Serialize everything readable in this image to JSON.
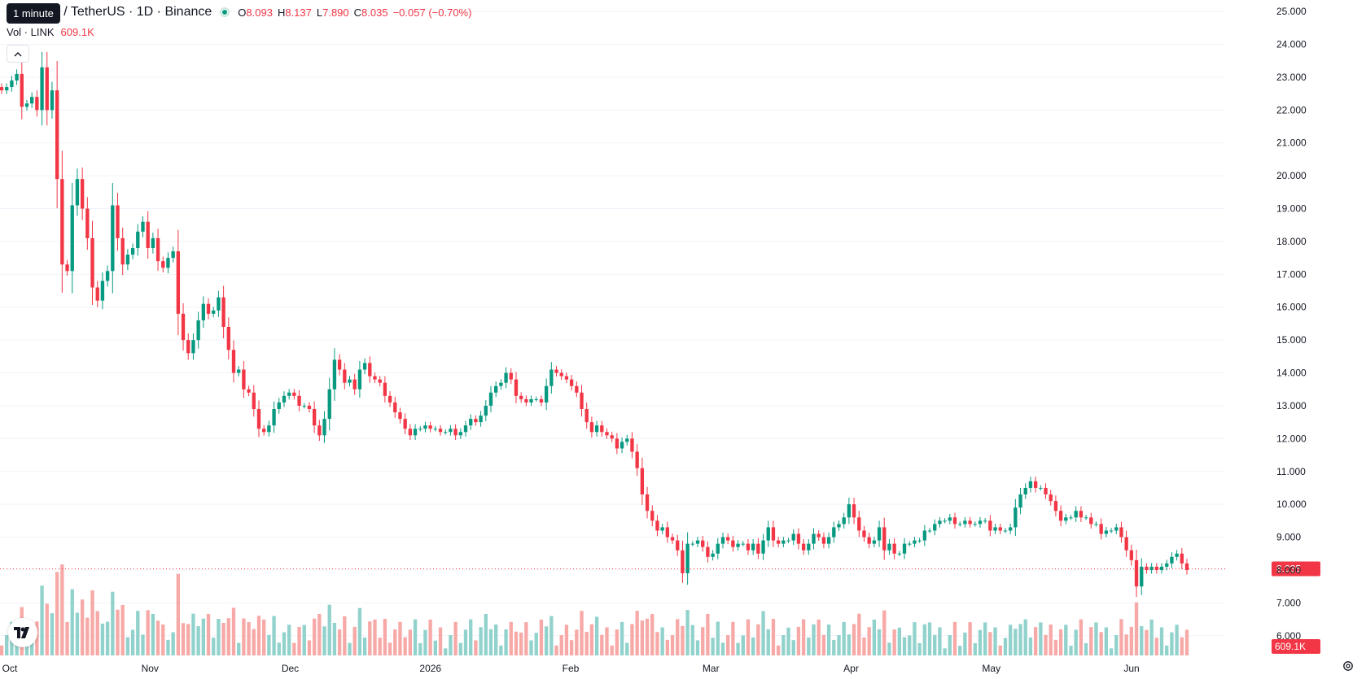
{
  "header": {
    "tooltip": "1 minute",
    "symbol_title": "Chainlink / TetherUS · 1D · Binance",
    "ohlc": {
      "o_label": "O",
      "o": "8.093",
      "h_label": "H",
      "h": "8.137",
      "l_label": "L",
      "l": "7.890",
      "c_label": "C",
      "c": "8.035",
      "change": "−0.057 (−0.70%)"
    },
    "volume_label": "Vol · LINK",
    "volume_value": "609.1K"
  },
  "colors": {
    "up": "#089981",
    "down": "#f23645",
    "up_volume": "#92d2cc",
    "down_volume": "#f7a9a7"
  },
  "icons": {
    "collapse": "chevron-up-icon",
    "logo": "tradingview-logo-icon",
    "settings": "gear-icon"
  },
  "chart_data": {
    "type": "candlestick",
    "title": "Chainlink / TetherUS · 1D · Binance",
    "y_ticks": [
      "25.000",
      "24.000",
      "23.000",
      "22.000",
      "21.000",
      "20.000",
      "19.000",
      "18.000",
      "17.000",
      "16.000",
      "15.000",
      "14.000",
      "13.000",
      "12.000",
      "11.000",
      "10.000",
      "9.000",
      "8.000",
      "7.000",
      "6.000"
    ],
    "ylim": [
      5.4,
      25.35
    ],
    "x_ticks": [
      "Oct",
      "Nov",
      "Dec",
      "2026",
      "Feb",
      "Mar",
      "Apr",
      "May",
      "Jun"
    ],
    "last_price": "8.035",
    "last_volume": "609.1K",
    "closes": [
      22.6,
      22.7,
      22.9,
      23.1,
      22.1,
      22.2,
      22.4,
      22.0,
      23.3,
      22.0,
      22.6,
      19.9,
      17.3,
      17.1,
      19.1,
      19.9,
      19.0,
      18.1,
      16.6,
      16.2,
      16.8,
      17.1,
      19.1,
      18.1,
      17.3,
      17.6,
      17.8,
      18.3,
      18.6,
      17.8,
      18.1,
      17.4,
      17.2,
      17.5,
      17.7,
      15.8,
      15.0,
      14.6,
      15.0,
      15.6,
      16.1,
      15.8,
      15.9,
      16.3,
      15.4,
      14.7,
      14.0,
      14.1,
      13.5,
      13.4,
      12.9,
      12.3,
      12.2,
      12.4,
      12.9,
      13.1,
      13.3,
      13.4,
      13.3,
      13.0,
      13.0,
      12.9,
      12.4,
      12.1,
      12.6,
      13.5,
      14.4,
      14.1,
      13.7,
      13.8,
      13.5,
      14.1,
      14.3,
      13.9,
      13.8,
      13.7,
      13.3,
      13.1,
      12.8,
      12.6,
      12.3,
      12.1,
      12.3,
      12.3,
      12.4,
      12.3,
      12.3,
      12.2,
      12.2,
      12.3,
      12.1,
      12.2,
      12.4,
      12.6,
      12.5,
      12.7,
      13.0,
      13.4,
      13.6,
      13.7,
      14.0,
      13.8,
      13.3,
      13.2,
      13.1,
      13.2,
      13.2,
      13.1,
      13.6,
      14.1,
      14.0,
      13.9,
      13.8,
      13.6,
      13.4,
      12.9,
      12.5,
      12.2,
      12.4,
      12.2,
      12.1,
      12.0,
      11.7,
      11.9,
      12.0,
      11.6,
      11.1,
      10.3,
      9.8,
      9.5,
      9.2,
      9.3,
      9.0,
      8.9,
      8.6,
      7.9,
      8.8,
      8.8,
      8.9,
      8.7,
      8.4,
      8.5,
      8.8,
      9.0,
      8.9,
      8.7,
      8.8,
      8.8,
      8.6,
      8.8,
      8.5,
      8.9,
      9.3,
      8.9,
      8.8,
      8.9,
      8.9,
      9.1,
      8.8,
      8.6,
      8.8,
      9.1,
      9.0,
      8.8,
      9.0,
      9.3,
      9.4,
      9.6,
      10.0,
      9.6,
      9.2,
      9.0,
      8.8,
      8.9,
      9.3,
      8.6,
      8.8,
      8.5,
      8.5,
      8.8,
      8.8,
      8.9,
      8.9,
      9.2,
      9.2,
      9.4,
      9.5,
      9.5,
      9.6,
      9.4,
      9.4,
      9.5,
      9.4,
      9.4,
      9.5,
      9.5,
      9.2,
      9.3,
      9.2,
      9.2,
      9.3,
      9.9,
      10.3,
      10.5,
      10.7,
      10.5,
      10.5,
      10.3,
      10.1,
      9.8,
      9.5,
      9.6,
      9.6,
      9.8,
      9.6,
      9.6,
      9.4,
      9.4,
      9.1,
      9.2,
      9.2,
      9.3,
      9.0,
      8.6,
      8.3,
      7.5,
      8.1,
      8.0,
      8.1,
      8.0,
      8.1,
      8.2,
      8.4,
      8.5,
      8.2,
      8.0
    ],
    "volume_ylim": [
      0,
      25
    ]
  }
}
